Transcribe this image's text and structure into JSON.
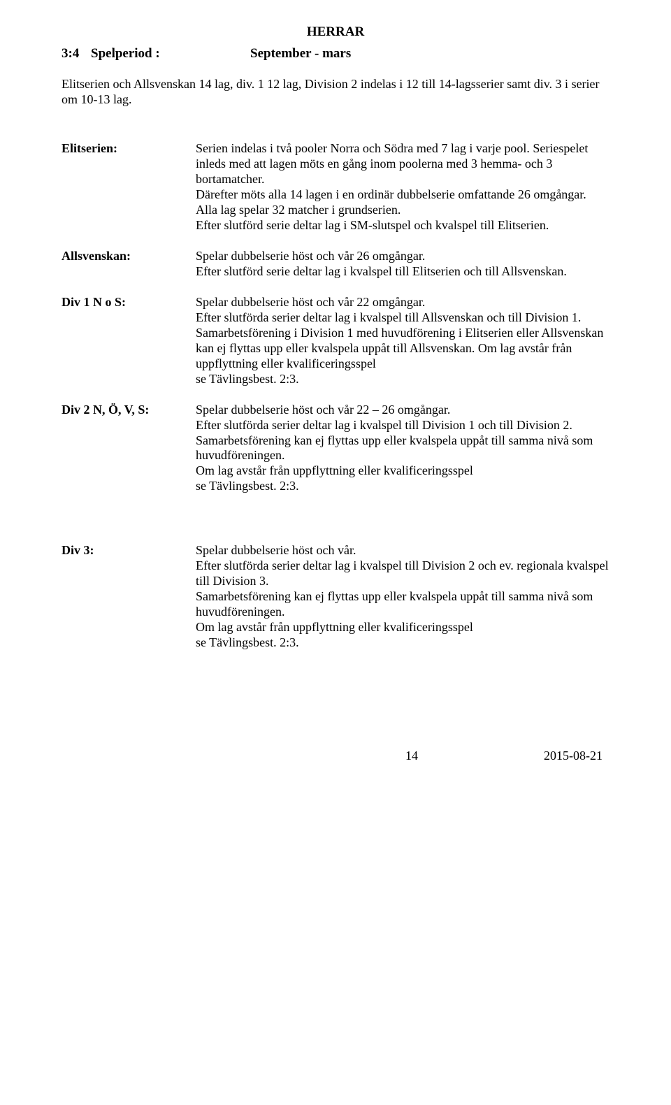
{
  "title": "HERRAR",
  "l34": {
    "num": "3:4",
    "label": "Spelperiod :",
    "value": "September - mars"
  },
  "intro": "Elitserien och Allsvenskan 14 lag, div. 1 12 lag, Division 2 indelas i 12 till 14-lagsserier samt div. 3 i serier om 10-13 lag.",
  "sections": {
    "elitserien": {
      "label": "Elitserien:",
      "p1": "Serien indelas i två pooler Norra och Södra med 7 lag i varje pool. Seriespelet inleds med att lagen möts en gång inom poolerna med 3 hemma- och 3 bortamatcher.",
      "p2": "Därefter möts alla 14 lagen i en ordinär dubbelserie omfattande 26 omgångar. Alla lag spelar 32 matcher i grundserien.",
      "p3": "Efter slutförd serie deltar lag i SM-slutspel och kvalspel till Elitserien."
    },
    "allsvenskan": {
      "label": "Allsvenskan:",
      "p1": "Spelar dubbelserie höst och vår 26 omgångar.",
      "p2": "Efter slutförd serie deltar lag i kvalspel till Elitserien och till Allsvenskan."
    },
    "div1": {
      "label": "Div 1 N o S:",
      "p1": "Spelar dubbelserie höst och vår 22 omgångar.",
      "p2": "Efter slutförda serier deltar lag i kvalspel till Allsvenskan och till Division 1.",
      "p3": "Samarbetsförening i Division 1 med huvudförening i Elitserien eller Allsvenskan kan ej flyttas upp eller kvalspela uppåt till Allsvenskan. Om lag avstår från uppflyttning eller kvalificeringsspel",
      "p4": "se Tävlingsbest. 2:3."
    },
    "div2": {
      "label": "Div 2 N, Ö, V, S:",
      "p1": "Spelar dubbelserie höst och vår 22 – 26  omgångar.",
      "p2": "Efter slutförda serier deltar lag i kvalspel till Division 1 och till Division 2.",
      "p3": "Samarbetsförening kan ej flyttas upp eller kvalspela uppåt till samma nivå som huvudföreningen.",
      "p4": "Om lag avstår från uppflyttning eller kvalificeringsspel",
      "p5": "se Tävlingsbest. 2:3."
    },
    "div3": {
      "label": "Div 3:",
      "p1": "Spelar dubbelserie höst och vår.",
      "p2": "Efter slutförda serier deltar lag i kvalspel till Division 2 och ev. regionala kvalspel till Division 3.",
      "p3": "Samarbetsförening kan ej flyttas upp eller kvalspela uppåt till samma nivå som huvudföreningen.",
      "p4": "Om lag avstår från uppflyttning eller kvalificeringsspel",
      "p5": " se Tävlingsbest. 2:3."
    }
  },
  "footer": {
    "page": "14",
    "date": "2015-08-21"
  }
}
